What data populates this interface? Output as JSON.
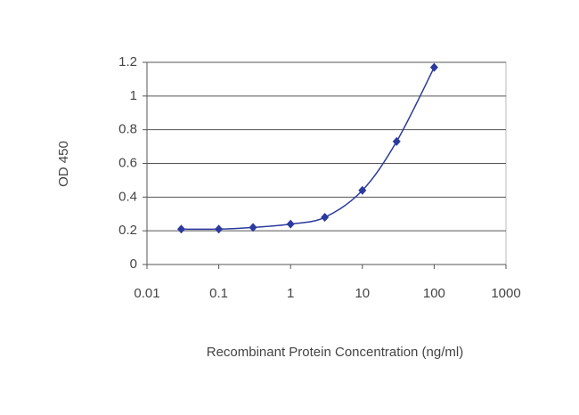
{
  "chart_data": {
    "type": "line",
    "xlabel": "Recombinant Protein Concentration (ng/ml)",
    "ylabel": "OD 450",
    "x": [
      0.03,
      0.1,
      0.3,
      1,
      3,
      10,
      30,
      100
    ],
    "series": [
      {
        "color": "#2b3a9e",
        "values": [
          0.21,
          0.21,
          0.22,
          0.24,
          0.28,
          0.44,
          0.73,
          1.17
        ]
      }
    ],
    "xscale": "log",
    "xlim": [
      0.01,
      1000
    ],
    "xticks": [
      0.01,
      0.1,
      1,
      10,
      100,
      1000
    ],
    "ylim": [
      0,
      1.2
    ],
    "yticks": [
      0,
      0.2,
      0.4,
      0.6,
      0.8,
      1,
      1.2
    ],
    "grid": true
  }
}
